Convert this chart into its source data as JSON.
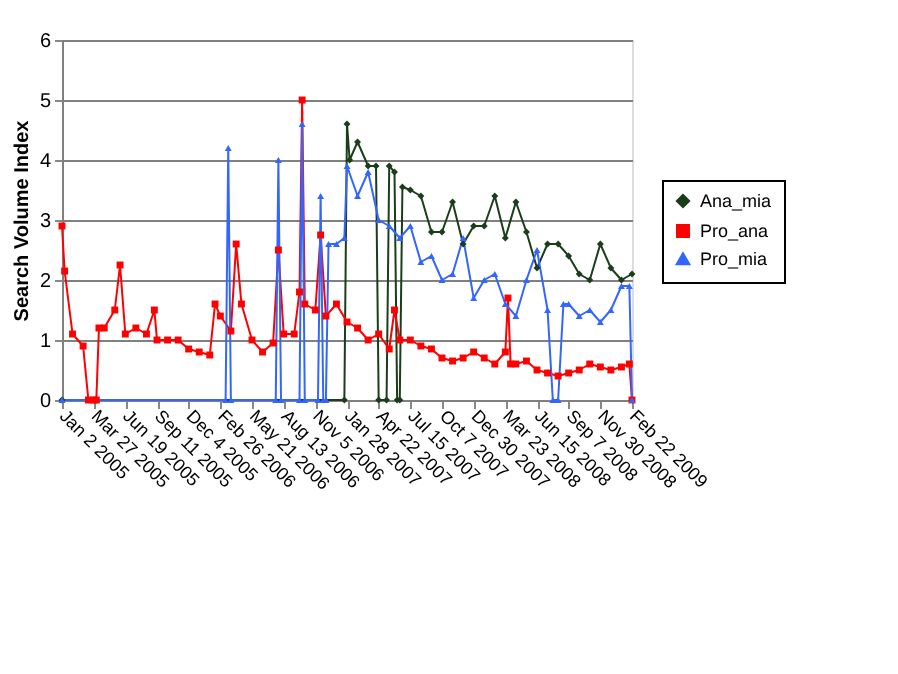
{
  "chart_data": {
    "type": "line",
    "ylabel": "Search Volume Index",
    "ylim": [
      0,
      6
    ],
    "yticks": [
      0,
      1,
      2,
      3,
      4,
      5,
      6
    ],
    "grid": "y",
    "legend": "right",
    "xlim": [
      "2005-01-02",
      "2009-02-22"
    ],
    "xticks": [
      {
        "value": "2005-01-02",
        "label": "Jan 2 2005"
      },
      {
        "value": "2005-03-27",
        "label": "Mar 27 2005"
      },
      {
        "value": "2005-06-19",
        "label": "Jun 19 2005"
      },
      {
        "value": "2005-09-11",
        "label": "Sep 11 2005"
      },
      {
        "value": "2005-12-04",
        "label": "Dec 4 2005"
      },
      {
        "value": "2006-02-26",
        "label": "Feb 26 2006"
      },
      {
        "value": "2006-05-21",
        "label": "May 21 2006"
      },
      {
        "value": "2006-08-13",
        "label": "Aug 13 2006"
      },
      {
        "value": "2006-11-05",
        "label": "Nov 5 2006"
      },
      {
        "value": "2007-01-28",
        "label": "Jan 28 2007"
      },
      {
        "value": "2007-04-22",
        "label": "Apr 22 2007"
      },
      {
        "value": "2007-07-15",
        "label": "Jul 15 2007"
      },
      {
        "value": "2007-10-07",
        "label": "Oct 7 2007"
      },
      {
        "value": "2007-12-30",
        "label": "Dec 30 2007"
      },
      {
        "value": "2008-03-23",
        "label": "Mar 23 2008"
      },
      {
        "value": "2008-06-15",
        "label": "Jun 15 2008"
      },
      {
        "value": "2008-09-07",
        "label": "Sep 7 2008"
      },
      {
        "value": "2008-11-30",
        "label": "Nov 30 2008"
      },
      {
        "value": "2009-02-22",
        "label": "Feb 22 2009"
      }
    ],
    "series": [
      {
        "name": "Ana_mia",
        "color": "#1a3d1a",
        "marker": "diamond",
        "x": [
          "2005-01-02",
          "2007-01-21",
          "2007-01-28",
          "2007-02-04",
          "2007-02-25",
          "2007-03-25",
          "2007-04-15",
          "2007-04-22",
          "2007-05-13",
          "2007-05-20",
          "2007-06-03",
          "2007-06-10",
          "2007-06-17",
          "2007-06-24",
          "2007-07-15",
          "2007-08-12",
          "2007-09-09",
          "2007-10-07",
          "2007-11-04",
          "2007-12-02",
          "2007-12-30",
          "2008-01-27",
          "2008-02-24",
          "2008-03-23",
          "2008-04-20",
          "2008-05-18",
          "2008-06-15",
          "2008-07-13",
          "2008-08-10",
          "2008-09-07",
          "2008-10-05",
          "2008-11-02",
          "2008-11-30",
          "2008-12-28",
          "2009-01-25",
          "2009-02-22"
        ],
        "values": [
          0,
          0,
          4.6,
          4.0,
          4.3,
          3.9,
          3.9,
          0,
          0,
          3.9,
          3.8,
          0,
          0,
          3.55,
          3.5,
          3.4,
          2.8,
          2.8,
          3.3,
          2.6,
          2.9,
          2.9,
          3.4,
          2.7,
          3.3,
          2.8,
          2.2,
          2.6,
          2.6,
          2.4,
          2.1,
          2.0,
          2.6,
          2.2,
          2.0,
          2.1
        ]
      },
      {
        "name": "Pro_ana",
        "color": "#ff0000",
        "marker": "square",
        "x": [
          "2005-01-02",
          "2005-01-09",
          "2005-01-30",
          "2005-02-27",
          "2005-03-13",
          "2005-03-27",
          "2005-04-03",
          "2005-04-10",
          "2005-04-24",
          "2005-05-22",
          "2005-06-05",
          "2005-06-19",
          "2005-07-17",
          "2005-08-14",
          "2005-09-04",
          "2005-09-11",
          "2005-10-09",
          "2005-11-06",
          "2005-12-04",
          "2006-01-01",
          "2006-01-29",
          "2006-02-12",
          "2006-02-26",
          "2006-03-26",
          "2006-04-09",
          "2006-04-23",
          "2006-05-21",
          "2006-06-18",
          "2006-07-16",
          "2006-07-30",
          "2006-08-13",
          "2006-09-10",
          "2006-09-24",
          "2006-10-01",
          "2006-10-08",
          "2006-11-05",
          "2006-11-19",
          "2006-12-03",
          "2006-12-31",
          "2007-01-28",
          "2007-02-25",
          "2007-03-25",
          "2007-04-22",
          "2007-05-20",
          "2007-06-03",
          "2007-06-17",
          "2007-07-15",
          "2007-08-12",
          "2007-09-09",
          "2007-10-07",
          "2007-11-04",
          "2007-12-02",
          "2007-12-30",
          "2008-01-27",
          "2008-02-24",
          "2008-03-23",
          "2008-03-30",
          "2008-04-06",
          "2008-04-20",
          "2008-05-18",
          "2008-06-15",
          "2008-07-13",
          "2008-08-10",
          "2008-09-07",
          "2008-10-05",
          "2008-11-02",
          "2008-11-30",
          "2008-12-28",
          "2009-01-25",
          "2009-02-15",
          "2009-02-22"
        ],
        "values": [
          2.9,
          2.15,
          1.1,
          0.9,
          0,
          0,
          0,
          1.2,
          1.2,
          1.5,
          2.25,
          1.1,
          1.2,
          1.1,
          1.5,
          1.0,
          1.0,
          1.0,
          0.85,
          0.8,
          0.75,
          1.6,
          1.4,
          1.15,
          2.6,
          1.6,
          1.0,
          0.8,
          0.95,
          2.5,
          1.1,
          1.1,
          1.8,
          5.0,
          1.6,
          1.5,
          2.75,
          1.4,
          1.6,
          1.3,
          1.2,
          1.0,
          1.1,
          0.85,
          1.5,
          1.0,
          1.0,
          0.9,
          0.85,
          0.7,
          0.65,
          0.7,
          0.8,
          0.7,
          0.6,
          0.8,
          1.7,
          0.6,
          0.6,
          0.65,
          0.5,
          0.45,
          0.4,
          0.45,
          0.5,
          0.6,
          0.55,
          0.5,
          0.55,
          0.6,
          0
        ]
      },
      {
        "name": "Pro_mia",
        "color": "#3366ff",
        "marker": "triangle",
        "x": [
          "2005-01-02",
          "2006-03-12",
          "2006-03-19",
          "2006-03-26",
          "2006-07-23",
          "2006-07-30",
          "2006-08-06",
          "2006-09-24",
          "2006-10-01",
          "2006-10-08",
          "2006-11-12",
          "2006-11-19",
          "2006-11-26",
          "2006-12-03",
          "2006-12-10",
          "2006-12-31",
          "2007-01-21",
          "2007-01-28",
          "2007-02-25",
          "2007-03-25",
          "2007-04-22",
          "2007-05-20",
          "2007-06-17",
          "2007-07-15",
          "2007-08-12",
          "2007-09-09",
          "2007-10-07",
          "2007-11-04",
          "2007-12-02",
          "2007-12-30",
          "2008-01-27",
          "2008-02-24",
          "2008-03-23",
          "2008-04-20",
          "2008-05-18",
          "2008-06-15",
          "2008-07-13",
          "2008-07-27",
          "2008-08-10",
          "2008-08-24",
          "2008-09-07",
          "2008-10-05",
          "2008-11-02",
          "2008-11-30",
          "2008-12-28",
          "2009-01-25",
          "2009-02-15",
          "2009-02-22"
        ],
        "values": [
          0,
          0,
          4.2,
          0,
          0,
          4.0,
          0,
          0,
          4.6,
          0,
          0,
          3.4,
          0,
          0,
          2.6,
          2.6,
          2.7,
          3.9,
          3.4,
          3.8,
          3.0,
          2.9,
          2.7,
          2.9,
          2.3,
          2.4,
          2.0,
          2.1,
          2.7,
          1.7,
          2.0,
          2.1,
          1.6,
          1.4,
          2.0,
          2.5,
          1.5,
          0,
          0,
          1.6,
          1.6,
          1.4,
          1.5,
          1.3,
          1.5,
          1.9,
          1.9,
          0
        ]
      }
    ]
  }
}
